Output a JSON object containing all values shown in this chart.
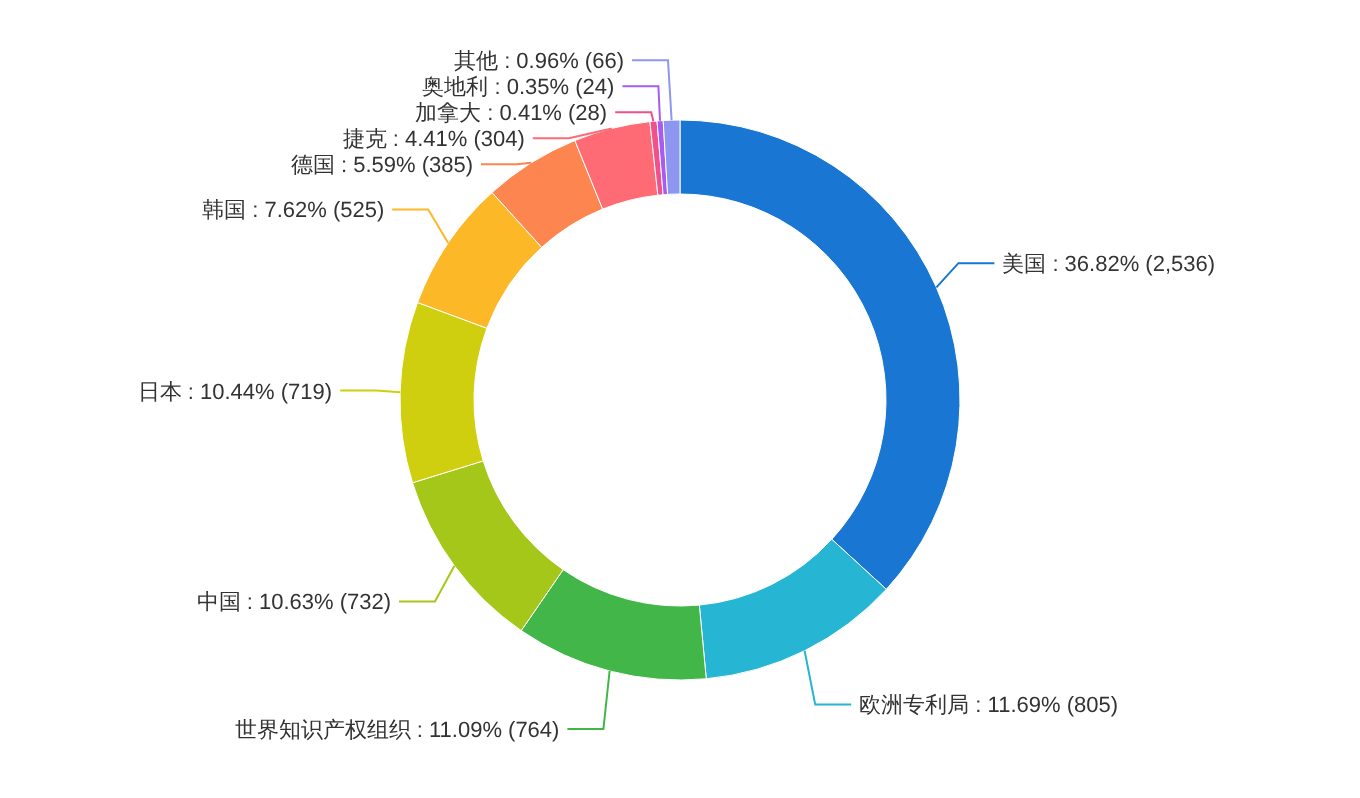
{
  "chart_data": {
    "type": "donut",
    "categories": [
      "美国",
      "欧洲专利局",
      "世界知识产权组织",
      "中国",
      "日本",
      "韩国",
      "德国",
      "捷克",
      "加拿大",
      "奥地利",
      "其他"
    ],
    "values": [
      2536,
      805,
      764,
      732,
      719,
      525,
      385,
      304,
      28,
      24,
      66
    ],
    "value_labels": [
      "36.82% (2,536)",
      "11.69% (805)",
      "11.09% (764)",
      "10.63% (732)",
      "10.44% (719)",
      "7.62% (525)",
      "5.59% (385)",
      "4.41% (304)",
      "0.41% (28)",
      "0.35% (24)",
      "0.96% (66)"
    ],
    "colors": [
      "#1976d2",
      "#26b5d3",
      "#43b649",
      "#a5c71a",
      "#cfcf10",
      "#fcb826",
      "#fd8550",
      "#fe6b74",
      "#f0508c",
      "#a65cf0",
      "#8e97f0"
    ]
  }
}
